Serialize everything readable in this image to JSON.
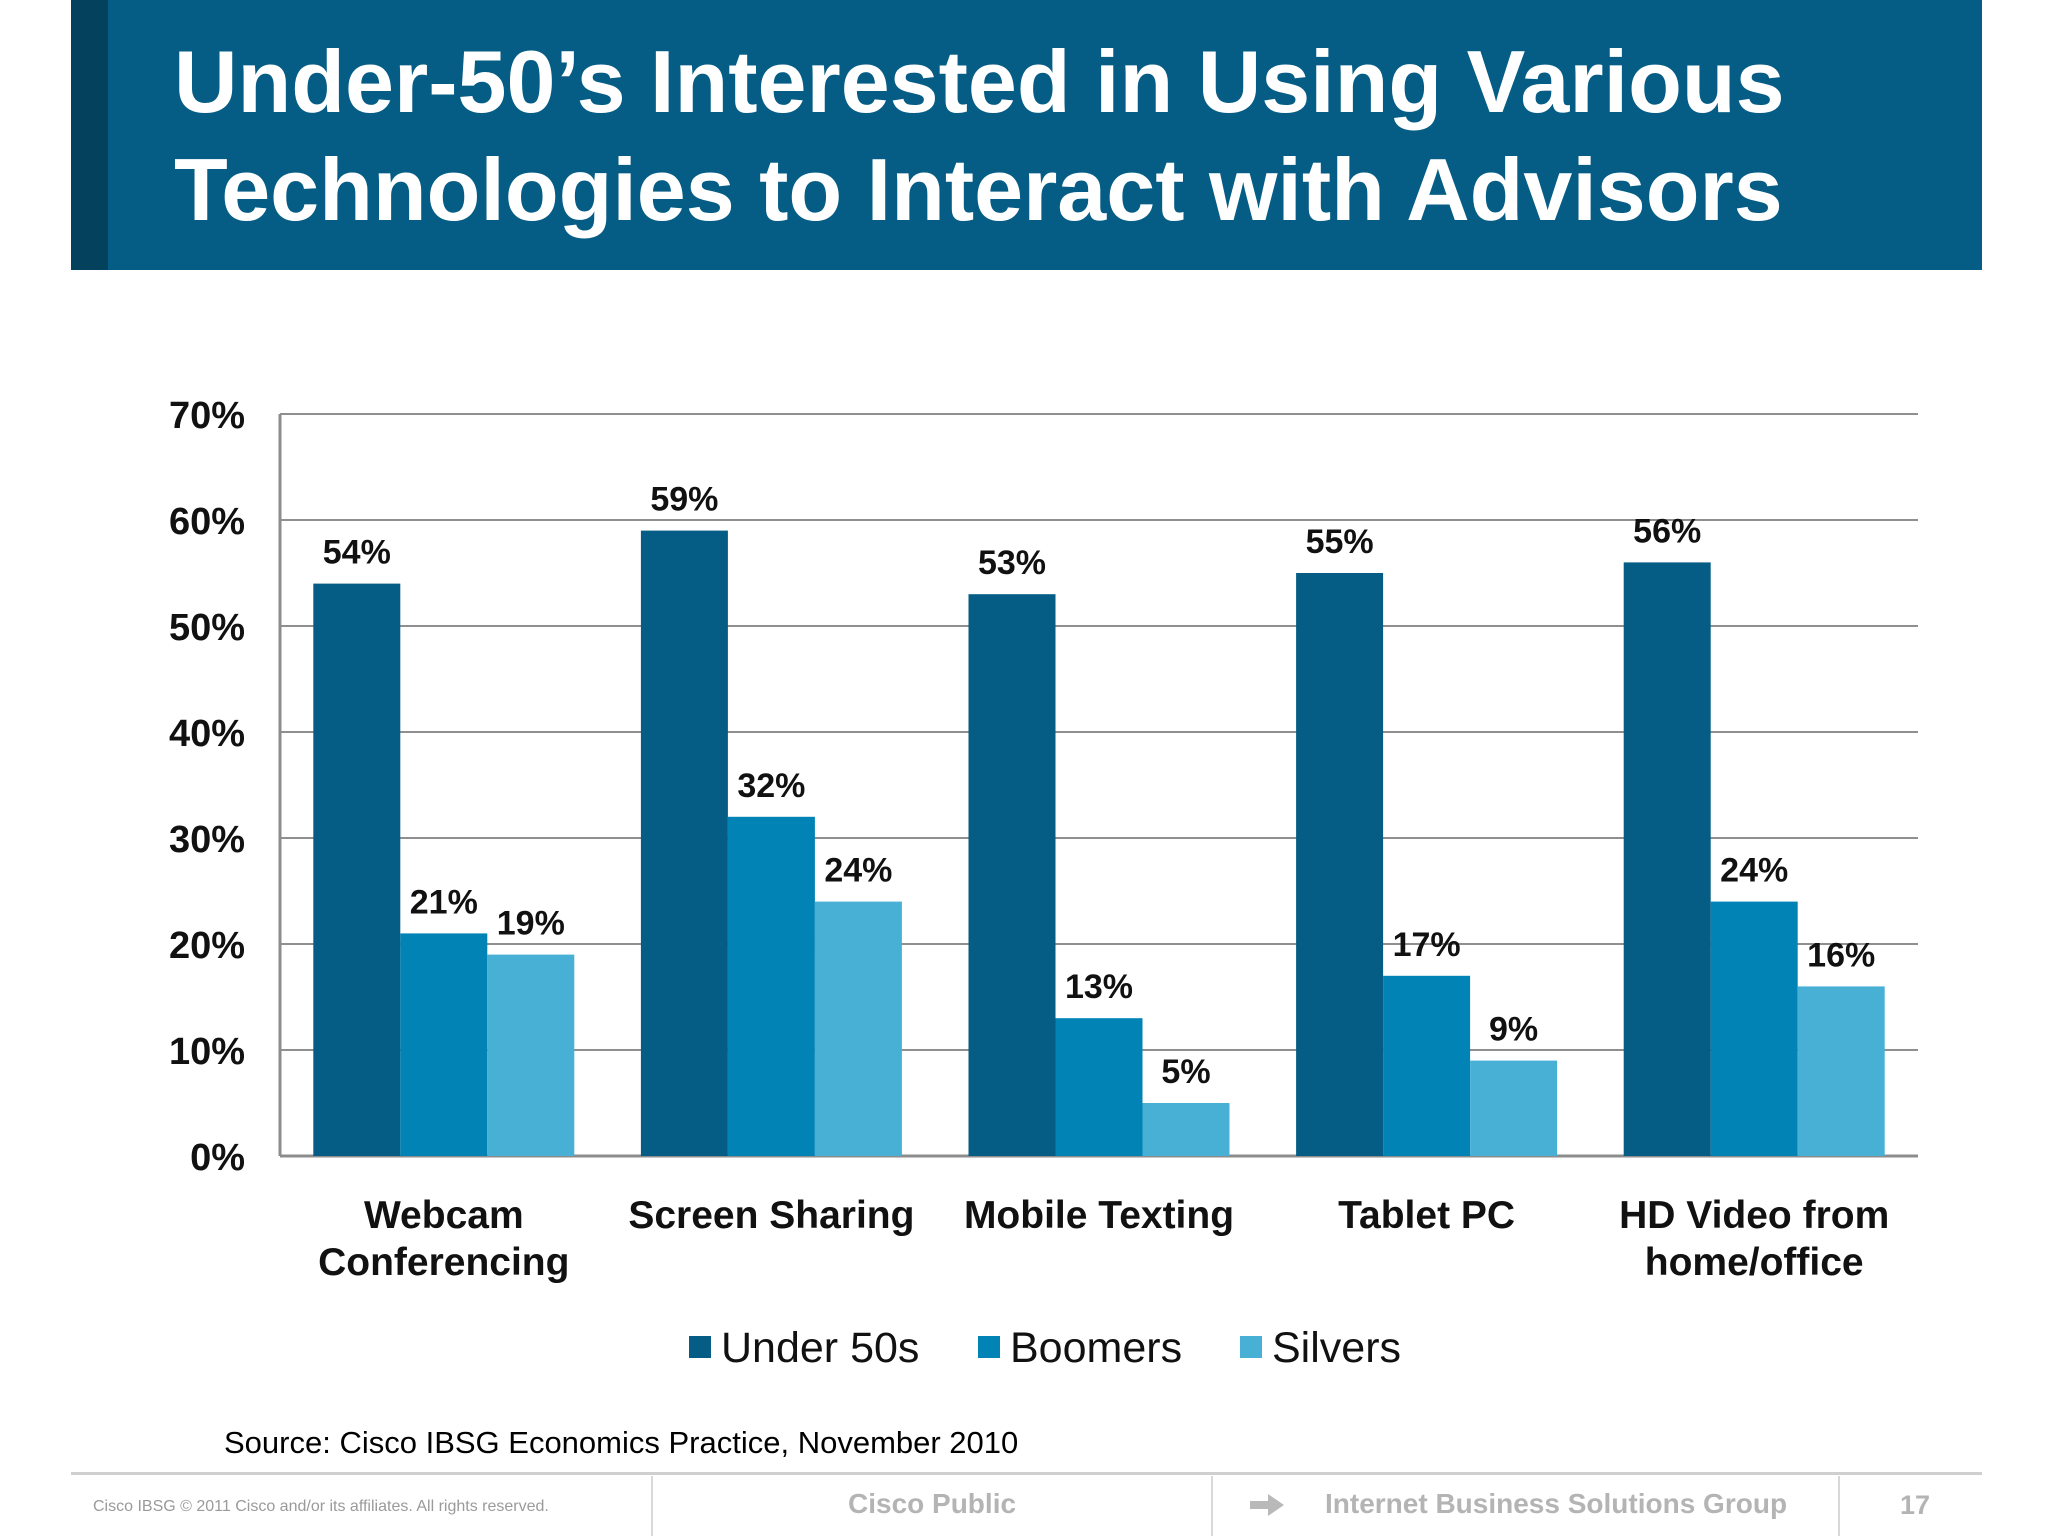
{
  "slide": {
    "title_line1": "Under-50’s Interested in Using Various",
    "title_line2": "Technologies to Interact with Advisors",
    "source": "Source: Cisco IBSG Economics Practice, November 2010"
  },
  "footer": {
    "copyright": "Cisco IBSG © 2011 Cisco and/or its affiliates. All rights reserved.",
    "classification": "Cisco Public",
    "group": "Internet Business Solutions Group",
    "page": "17",
    "arrow_icon": "arrow-right-icon"
  },
  "colors": {
    "title_band": "#055d85",
    "title_accent": "#03415d"
  },
  "chart_data": {
    "type": "bar",
    "categories": [
      [
        "Webcam",
        "Conferencing"
      ],
      [
        "Screen Sharing"
      ],
      [
        "Mobile Texting"
      ],
      [
        "Tablet PC"
      ],
      [
        "HD Video from",
        "home/office"
      ]
    ],
    "series": [
      {
        "name": "Under 50s",
        "color": "#055d85",
        "values": [
          54,
          59,
          53,
          55,
          56
        ]
      },
      {
        "name": "Boomers",
        "color": "#0283b5",
        "values": [
          21,
          32,
          13,
          17,
          24
        ]
      },
      {
        "name": "Silvers",
        "color": "#48b0d5",
        "values": [
          19,
          24,
          5,
          9,
          16
        ]
      }
    ],
    "value_suffix": "%",
    "ylim": [
      0,
      70
    ],
    "yticks": [
      0,
      10,
      20,
      30,
      40,
      50,
      60,
      70
    ],
    "ytick_labels": [
      "0%",
      "10%",
      "20%",
      "30%",
      "40%",
      "50%",
      "60%",
      "70%"
    ],
    "grid": true,
    "legend_position": "bottom",
    "title": "",
    "xlabel": "",
    "ylabel": ""
  }
}
